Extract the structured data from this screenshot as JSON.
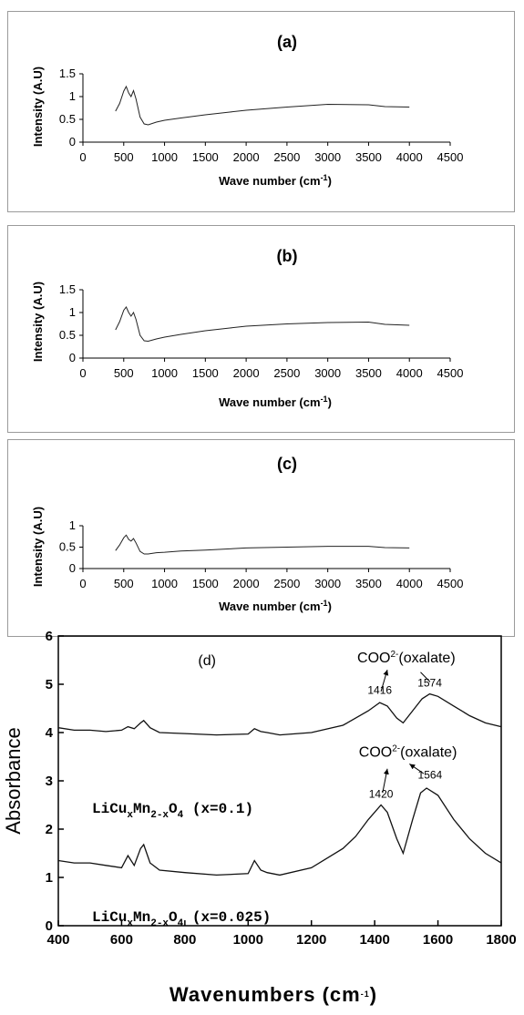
{
  "chart_data": [
    {
      "type": "line",
      "panel_label": "(a)",
      "xlabel": "Wave number (cm",
      "xlabel_sup": "-1",
      "xlabel_end": ")",
      "ylabel": "Intensity (A.U)",
      "xlim": [
        0,
        4500
      ],
      "ylim": [
        0,
        1.5
      ],
      "xticks": [
        "0",
        "500",
        "1000",
        "1500",
        "2000",
        "2500",
        "3000",
        "3500",
        "4000",
        "4500"
      ],
      "yticks": [
        "0",
        "0.5",
        "1",
        "1.5"
      ],
      "series": [
        {
          "x": [
            400,
            450,
            500,
            530,
            560,
            590,
            620,
            650,
            700,
            750,
            800,
            900,
            1000,
            1200,
            1500,
            1800,
            2000,
            2500,
            3000,
            3500,
            3700,
            4000
          ],
          "y": [
            0.68,
            0.85,
            1.12,
            1.22,
            1.08,
            1.0,
            1.13,
            0.95,
            0.55,
            0.4,
            0.38,
            0.44,
            0.48,
            0.53,
            0.6,
            0.66,
            0.7,
            0.77,
            0.83,
            0.82,
            0.78,
            0.77
          ]
        }
      ]
    },
    {
      "type": "line",
      "panel_label": "(b)",
      "xlabel": "Wave number (cm",
      "xlabel_sup": "-1",
      "xlabel_end": ")",
      "ylabel": "Intensity (A.U)",
      "xlim": [
        0,
        4500
      ],
      "ylim": [
        0,
        1.5
      ],
      "xticks": [
        "0",
        "500",
        "1000",
        "1500",
        "2000",
        "2500",
        "3000",
        "3500",
        "4000",
        "4500"
      ],
      "yticks": [
        "0",
        "0.5",
        "1",
        "1.5"
      ],
      "series": [
        {
          "x": [
            400,
            450,
            500,
            530,
            560,
            590,
            620,
            650,
            700,
            750,
            800,
            900,
            1000,
            1200,
            1500,
            1800,
            2000,
            2500,
            3000,
            3500,
            3700,
            4000
          ],
          "y": [
            0.62,
            0.8,
            1.05,
            1.12,
            1.0,
            0.92,
            1.0,
            0.85,
            0.5,
            0.38,
            0.37,
            0.42,
            0.46,
            0.52,
            0.6,
            0.66,
            0.7,
            0.75,
            0.78,
            0.79,
            0.74,
            0.72
          ]
        }
      ]
    },
    {
      "type": "line",
      "panel_label": "(c)",
      "xlabel": "Wave number (cm",
      "xlabel_sup": "-1",
      "xlabel_end": ")",
      "ylabel": "Intensity (A.U)",
      "xlim": [
        0,
        4500
      ],
      "ylim": [
        0,
        1
      ],
      "xticks": [
        "0",
        "500",
        "1000",
        "1500",
        "2000",
        "2500",
        "3000",
        "3500",
        "4000",
        "4500"
      ],
      "yticks": [
        "0",
        "0.5",
        "1"
      ],
      "series": [
        {
          "x": [
            400,
            450,
            500,
            530,
            560,
            590,
            620,
            650,
            700,
            750,
            800,
            900,
            1000,
            1200,
            1500,
            1800,
            2000,
            2500,
            3000,
            3500,
            3700,
            4000
          ],
          "y": [
            0.42,
            0.55,
            0.72,
            0.78,
            0.68,
            0.64,
            0.7,
            0.6,
            0.4,
            0.34,
            0.34,
            0.37,
            0.38,
            0.41,
            0.43,
            0.46,
            0.48,
            0.5,
            0.52,
            0.52,
            0.49,
            0.48
          ]
        }
      ]
    },
    {
      "type": "line",
      "panel_label": "(d)",
      "xlabel": "Wavenumbers (cm",
      "xlabel_sup": "-1",
      "xlabel_end": ")",
      "ylabel": "Absorbance",
      "xlim": [
        400,
        1800
      ],
      "ylim": [
        0,
        6
      ],
      "xticks": [
        "400",
        "600",
        "800",
        "1000",
        "1200",
        "1400",
        "1600",
        "1800"
      ],
      "yticks": [
        "0",
        "1",
        "2",
        "3",
        "4",
        "5",
        "6"
      ],
      "series": [
        {
          "label_parts": [
            "LiCu",
            "x",
            "Mn",
            "2-x",
            "O",
            "4",
            " (x=0.1)"
          ],
          "x": [
            400,
            450,
            500,
            550,
            600,
            620,
            640,
            660,
            670,
            690,
            720,
            800,
            900,
            1000,
            1020,
            1040,
            1060,
            1100,
            1200,
            1300,
            1340,
            1380,
            1416,
            1440,
            1470,
            1490,
            1520,
            1550,
            1574,
            1600,
            1650,
            1700,
            1750,
            1800
          ],
          "y": [
            4.1,
            4.05,
            4.05,
            4.02,
            4.05,
            4.12,
            4.08,
            4.2,
            4.25,
            4.1,
            4.0,
            3.98,
            3.95,
            3.97,
            4.08,
            4.02,
            4.0,
            3.95,
            4.0,
            4.15,
            4.3,
            4.45,
            4.62,
            4.55,
            4.3,
            4.2,
            4.45,
            4.7,
            4.8,
            4.75,
            4.55,
            4.35,
            4.2,
            4.12
          ]
        },
        {
          "label_parts": [
            "LiCu",
            "x",
            "Mn",
            "2-x",
            "O",
            "4",
            " (x=0.025)"
          ],
          "x": [
            400,
            450,
            500,
            550,
            600,
            620,
            640,
            660,
            670,
            690,
            720,
            800,
            900,
            1000,
            1020,
            1040,
            1060,
            1100,
            1200,
            1300,
            1340,
            1380,
            1420,
            1440,
            1470,
            1490,
            1520,
            1545,
            1564,
            1600,
            1650,
            1700,
            1750,
            1800
          ],
          "y": [
            1.35,
            1.3,
            1.3,
            1.25,
            1.2,
            1.45,
            1.25,
            1.6,
            1.68,
            1.3,
            1.15,
            1.1,
            1.05,
            1.08,
            1.35,
            1.15,
            1.1,
            1.05,
            1.2,
            1.6,
            1.85,
            2.2,
            2.5,
            2.35,
            1.8,
            1.5,
            2.2,
            2.75,
            2.85,
            2.7,
            2.2,
            1.8,
            1.5,
            1.3
          ]
        }
      ],
      "annotations": [
        {
          "text": "COO",
          "sup": "2-",
          "rest": "(oxalate)",
          "x": 1500,
          "y": 5.45
        },
        {
          "text": "1416",
          "x": 1416,
          "y": 4.8
        },
        {
          "text": "1574",
          "x": 1574,
          "y": 4.95
        },
        {
          "text": "COO",
          "sup": "2-",
          "rest": "(oxalate)",
          "x": 1505,
          "y": 3.5
        },
        {
          "text": "1420",
          "x": 1420,
          "y": 2.65
        },
        {
          "text": "1564",
          "x": 1575,
          "y": 3.05
        }
      ]
    }
  ]
}
